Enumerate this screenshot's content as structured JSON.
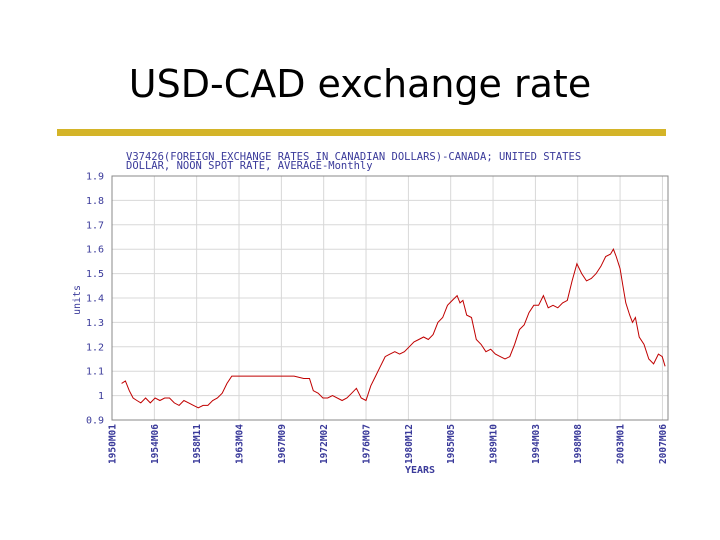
{
  "slide": {
    "title": "USD-CAD exchange rate",
    "rule_color": "#d4b428"
  },
  "chart_data": {
    "type": "line",
    "title_line1": "V37426(FOREIGN EXCHANGE RATES IN CANADIAN DOLLARS)-CANADA; UNITED STATES",
    "title_line2": "DOLLAR, NOON SPOT RATE, AVERAGE-Monthly",
    "xlabel": "YEARS",
    "ylabel": "units",
    "ylim": [
      0.9,
      1.9
    ],
    "xlim": [
      1950.0,
      2008.0
    ],
    "y_ticks": [
      "1.9",
      "1.8",
      "1.7",
      "1.6",
      "1.5",
      "1.4",
      "1.3",
      "1.2",
      "1.1",
      "1",
      "0.9"
    ],
    "x_ticks": [
      {
        "label": "1950M01",
        "x": 1950.0
      },
      {
        "label": "1954M06",
        "x": 1954.42
      },
      {
        "label": "1958M11",
        "x": 1958.83
      },
      {
        "label": "1963M04",
        "x": 1963.25
      },
      {
        "label": "1967M09",
        "x": 1967.67
      },
      {
        "label": "1972M02",
        "x": 1972.08
      },
      {
        "label": "1976M07",
        "x": 1976.5
      },
      {
        "label": "1980M12",
        "x": 1980.92
      },
      {
        "label": "1985M05",
        "x": 1985.33
      },
      {
        "label": "1989M10",
        "x": 1989.75
      },
      {
        "label": "1994M03",
        "x": 1994.17
      },
      {
        "label": "1998M08",
        "x": 1998.58
      },
      {
        "label": "2003M01",
        "x": 2003.0
      },
      {
        "label": "2007M06",
        "x": 2007.42
      }
    ],
    "grid": true,
    "line_color": "#c00000",
    "text_color": "#3a3a9a",
    "series": [
      {
        "x": [
          1951.0,
          1951.4,
          1951.8,
          1952.2,
          1952.6,
          1953.0,
          1953.5,
          1954.0,
          1954.5,
          1955.0,
          1955.5,
          1956.0,
          1956.5,
          1957.0,
          1957.5,
          1958.0,
          1958.5,
          1959.0,
          1959.5,
          1960.0,
          1960.5,
          1961.0,
          1961.5,
          1962.0,
          1962.5,
          1963.0,
          1963.5,
          1964.0,
          1965.0,
          1966.0,
          1967.0,
          1968.0,
          1969.0,
          1970.0,
          1970.6,
          1971.0,
          1971.5,
          1972.0,
          1972.5,
          1973.0,
          1974.0,
          1974.5,
          1975.0,
          1975.5,
          1976.0,
          1976.5,
          1977.0,
          1977.5,
          1978.0,
          1978.5,
          1979.0,
          1979.5,
          1980.0,
          1980.5,
          1981.0,
          1981.5,
          1982.0,
          1982.5,
          1983.0,
          1983.5,
          1984.0,
          1984.5,
          1985.0,
          1985.5,
          1986.0,
          1986.3,
          1986.6,
          1987.0,
          1987.5,
          1988.0,
          1988.5,
          1989.0,
          1989.5,
          1990.0,
          1990.5,
          1991.0,
          1991.5,
          1992.0,
          1992.5,
          1993.0,
          1993.5,
          1994.0,
          1994.5,
          1995.0,
          1995.5,
          1996.0,
          1996.5,
          1997.0,
          1997.5,
          1998.0,
          1998.5,
          1999.0,
          1999.5,
          2000.0,
          2000.5,
          2001.0,
          2001.5,
          2002.0,
          2002.3,
          2002.6,
          2003.0,
          2003.3,
          2003.6,
          2004.0,
          2004.3,
          2004.6,
          2005.0,
          2005.5,
          2006.0,
          2006.5,
          2007.0,
          2007.4,
          2007.7
        ],
        "y": [
          1.05,
          1.06,
          1.02,
          0.99,
          0.98,
          0.97,
          0.99,
          0.97,
          0.99,
          0.98,
          0.99,
          0.99,
          0.97,
          0.96,
          0.98,
          0.97,
          0.96,
          0.95,
          0.96,
          0.96,
          0.98,
          0.99,
          1.01,
          1.05,
          1.08,
          1.08,
          1.08,
          1.08,
          1.08,
          1.08,
          1.08,
          1.08,
          1.08,
          1.07,
          1.07,
          1.02,
          1.01,
          0.99,
          0.99,
          1.0,
          0.98,
          0.99,
          1.01,
          1.03,
          0.99,
          0.98,
          1.04,
          1.08,
          1.12,
          1.16,
          1.17,
          1.18,
          1.17,
          1.18,
          1.2,
          1.22,
          1.23,
          1.24,
          1.23,
          1.25,
          1.3,
          1.32,
          1.37,
          1.39,
          1.41,
          1.38,
          1.39,
          1.33,
          1.32,
          1.23,
          1.21,
          1.18,
          1.19,
          1.17,
          1.16,
          1.15,
          1.16,
          1.21,
          1.27,
          1.29,
          1.34,
          1.37,
          1.37,
          1.41,
          1.36,
          1.37,
          1.36,
          1.38,
          1.39,
          1.47,
          1.54,
          1.5,
          1.47,
          1.48,
          1.5,
          1.53,
          1.57,
          1.58,
          1.6,
          1.57,
          1.52,
          1.45,
          1.38,
          1.33,
          1.3,
          1.32,
          1.24,
          1.21,
          1.15,
          1.13,
          1.17,
          1.16,
          1.12
        ]
      }
    ]
  }
}
